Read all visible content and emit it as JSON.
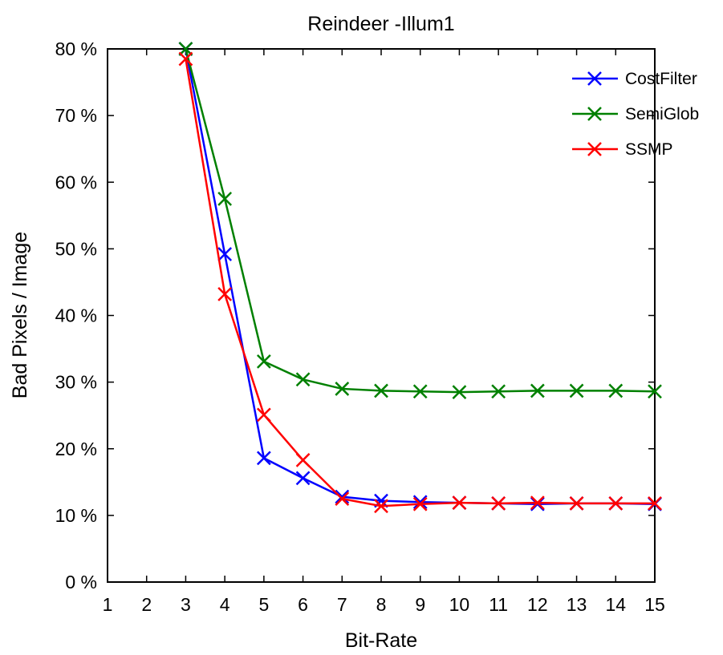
{
  "chart_data": {
    "type": "line",
    "title": "Reindeer -Illum1",
    "xlabel": "Bit-Rate",
    "ylabel": "Bad Pixels / Image",
    "xlim": [
      1,
      15
    ],
    "ylim": [
      0,
      80
    ],
    "x_ticks": [
      "1",
      "2",
      "3",
      "4",
      "5",
      "6",
      "7",
      "8",
      "9",
      "10",
      "11",
      "12",
      "13",
      "14",
      "15"
    ],
    "y_ticks": [
      "0 %",
      "10 %",
      "20 %",
      "30 %",
      "40 %",
      "50 %",
      "60 %",
      "70 %",
      "80 %"
    ],
    "x": [
      3,
      4,
      5,
      6,
      7,
      8,
      9,
      10,
      11,
      12,
      13,
      14,
      15
    ],
    "series": [
      {
        "name": "CostFilter",
        "color": "#0000ff",
        "values": [
          80,
          49.2,
          18.6,
          15.6,
          12.8,
          12.2,
          12.0,
          11.9,
          11.8,
          11.7,
          11.8,
          11.8,
          11.7
        ]
      },
      {
        "name": "SemiGlob",
        "color": "#008000",
        "values": [
          80,
          57.5,
          33.1,
          30.4,
          29.0,
          28.7,
          28.6,
          28.5,
          28.6,
          28.7,
          28.7,
          28.7,
          28.6
        ]
      },
      {
        "name": "SSMP",
        "color": "#ff0000",
        "values": [
          78.5,
          43.2,
          25.1,
          18.3,
          12.5,
          11.4,
          11.7,
          11.9,
          11.8,
          11.9,
          11.8,
          11.8,
          11.8
        ]
      }
    ],
    "legend_position": "top-right",
    "grid": false
  }
}
